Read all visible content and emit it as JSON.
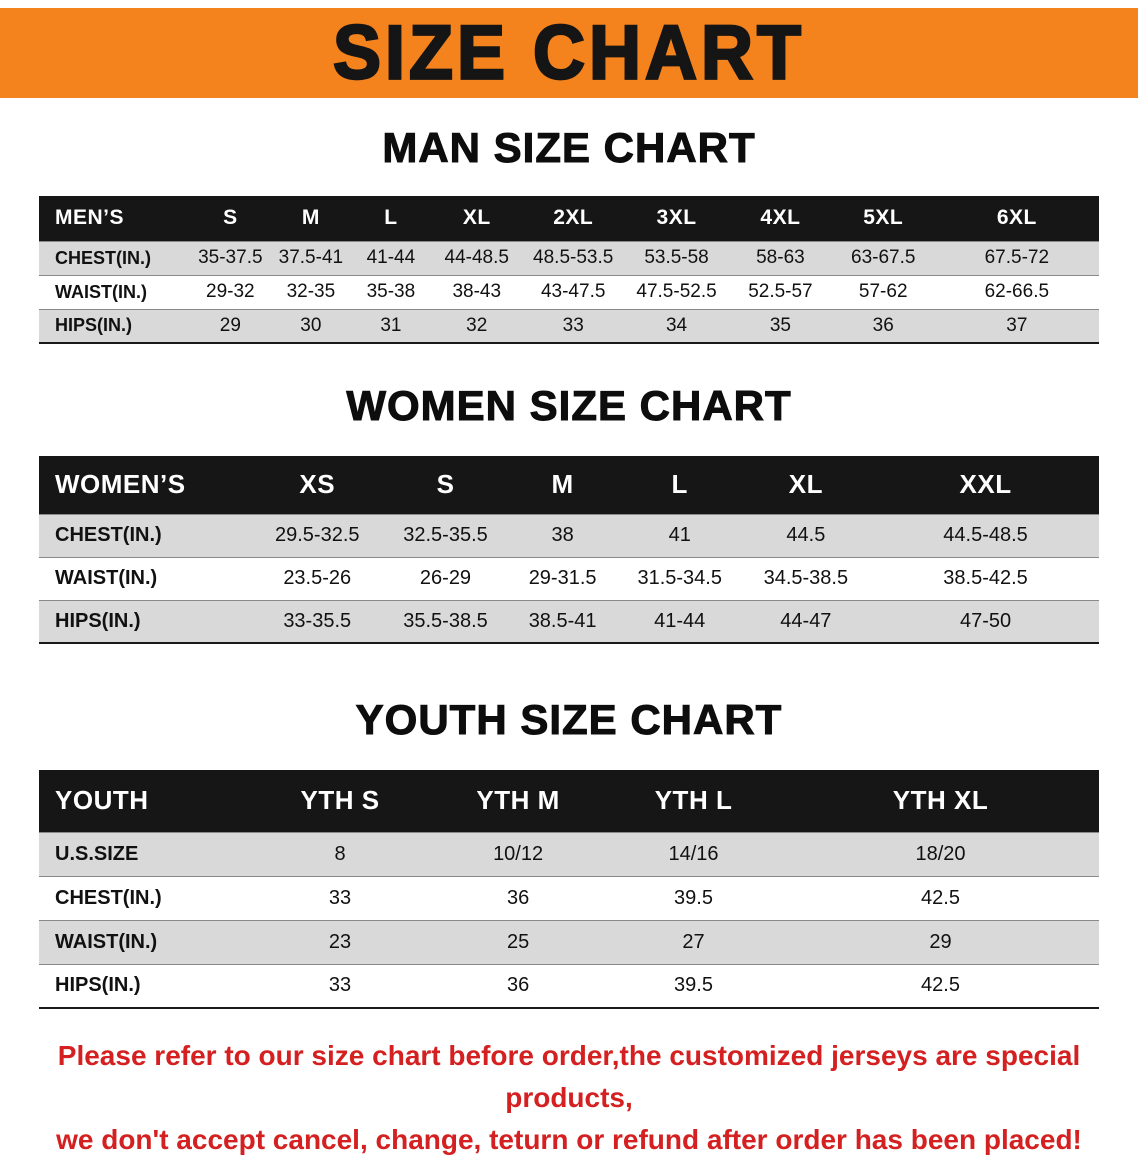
{
  "banner": {
    "title": "SIZE CHART",
    "bg_color": "#f5831d"
  },
  "sections": [
    {
      "heading": "MAN SIZE CHART",
      "table": {
        "header": [
          "MEN’S",
          "S",
          "M",
          "L",
          "XL",
          "2XL",
          "3XL",
          "4XL",
          "5XL",
          "6XL"
        ],
        "rows": [
          [
            "CHEST(IN.)",
            "35-37.5",
            "37.5-41",
            "41-44",
            "44-48.5",
            "48.5-53.5",
            "53.5-58",
            "58-63",
            "63-67.5",
            "67.5-72"
          ],
          [
            "WAIST(IN.)",
            "29-32",
            "32-35",
            "35-38",
            "38-43",
            "43-47.5",
            "47.5-52.5",
            "52.5-57",
            "57-62",
            "62-66.5"
          ],
          [
            "HIPS(IN.)",
            "29",
            "30",
            "31",
            "32",
            "33",
            "34",
            "35",
            "36",
            "37"
          ]
        ]
      }
    },
    {
      "heading": "WOMEN SIZE CHART",
      "table": {
        "header": [
          "WOMEN’S",
          "XS",
          "S",
          "M",
          "L",
          "XL",
          "XXL"
        ],
        "rows": [
          [
            "CHEST(IN.)",
            "29.5-32.5",
            "32.5-35.5",
            "38",
            "41",
            "44.5",
            "44.5-48.5"
          ],
          [
            "WAIST(IN.)",
            "23.5-26",
            "26-29",
            "29-31.5",
            "31.5-34.5",
            "34.5-38.5",
            "38.5-42.5"
          ],
          [
            "HIPS(IN.)",
            "33-35.5",
            "35.5-38.5",
            "38.5-41",
            "41-44",
            "44-47",
            "47-50"
          ]
        ]
      }
    },
    {
      "heading": "YOUTH SIZE CHART",
      "table": {
        "header": [
          "YOUTH",
          "YTH S",
          "YTH M",
          "YTH L",
          "YTH XL"
        ],
        "rows": [
          [
            "U.S.SIZE",
            "8",
            "10/12",
            "14/16",
            "18/20"
          ],
          [
            "CHEST(IN.)",
            "33",
            "36",
            "39.5",
            "42.5"
          ],
          [
            "WAIST(IN.)",
            "23",
            "25",
            "27",
            "29"
          ],
          [
            "HIPS(IN.)",
            "33",
            "36",
            "39.5",
            "42.5"
          ]
        ]
      }
    }
  ],
  "disclaimer": {
    "line1": "Please refer to our size chart before order,the customized jerseys are special products,",
    "line2": "we don't accept cancel, change, teturn or refund after order has been placed!",
    "color": "#d42020"
  }
}
